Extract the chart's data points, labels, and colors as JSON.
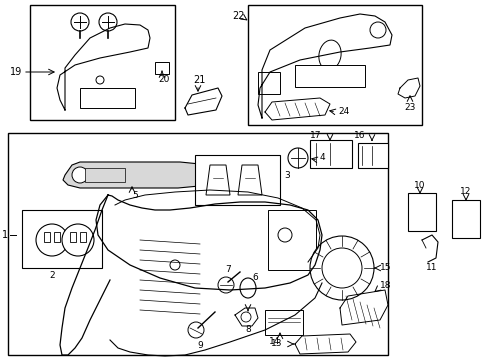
{
  "bg_color": "#ffffff",
  "lc": "#000000",
  "figsize": [
    4.89,
    3.6
  ],
  "dpi": 100
}
